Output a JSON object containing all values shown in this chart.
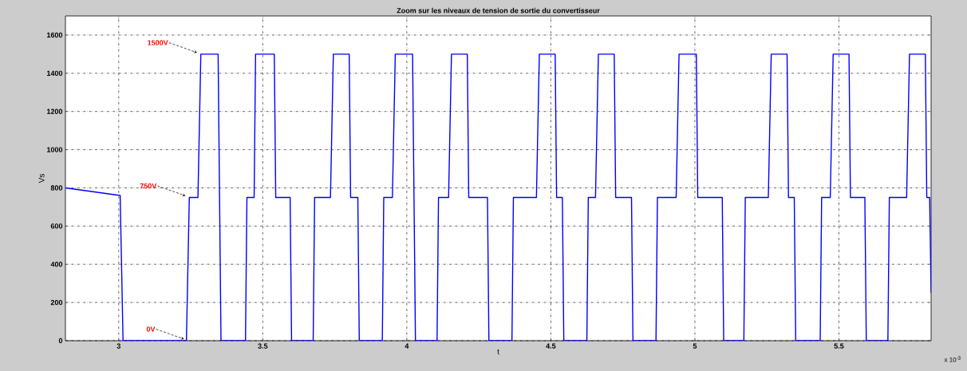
{
  "chart_data": {
    "type": "line",
    "title": "Zoom sur les niveaux de tension de sortie du convertisseur",
    "xlabel": "t",
    "ylabel": "Vs",
    "annotations": [
      {
        "text": "1500V",
        "x": 3.28,
        "y": 1500
      },
      {
        "text": "750V",
        "x": 3.24,
        "y": 750
      },
      {
        "text": "0V",
        "x": 3.235,
        "y": 0
      },
      "x 10$^{-3}$"
    ],
    "x": [
      2.815,
      3.005,
      3.015,
      3.235,
      3.245,
      3.275,
      3.285,
      3.345,
      3.35,
      3.355,
      3.44,
      3.445,
      3.47,
      3.475,
      3.54,
      3.545,
      3.595,
      3.6,
      3.675,
      3.68,
      3.735,
      3.745,
      3.8,
      3.805,
      3.83,
      3.835,
      3.915,
      3.92,
      3.95,
      3.96,
      4.02,
      4.025,
      4.03,
      4.105,
      4.11,
      4.145,
      4.155,
      4.21,
      4.215,
      4.28,
      4.285,
      4.365,
      4.37,
      4.45,
      4.46,
      4.515,
      4.52,
      4.54,
      4.545,
      4.625,
      4.63,
      4.655,
      4.665,
      4.72,
      4.725,
      4.78,
      4.785,
      4.865,
      4.87,
      4.935,
      4.945,
      5.005,
      5.01,
      5.095,
      5.1,
      5.17,
      5.175,
      5.255,
      5.265,
      5.32,
      5.325,
      5.345,
      5.35,
      5.435,
      5.44,
      5.47,
      5.48,
      5.535,
      5.54,
      5.59,
      5.595,
      5.67,
      5.675,
      5.735,
      5.745,
      5.8,
      5.805,
      5.815,
      5.82
    ],
    "series": [
      {
        "color": "#0000ff",
        "values": [
          800,
          760,
          0,
          0,
          750,
          750,
          1500,
          1500,
          750,
          0,
          0,
          750,
          750,
          1500,
          1500,
          750,
          750,
          0,
          0,
          750,
          750,
          1500,
          1500,
          750,
          750,
          0,
          0,
          750,
          750,
          1500,
          1500,
          750,
          0,
          0,
          750,
          750,
          1500,
          1500,
          750,
          750,
          0,
          0,
          750,
          750,
          1500,
          1500,
          750,
          750,
          0,
          0,
          750,
          750,
          1500,
          1500,
          750,
          750,
          0,
          0,
          750,
          750,
          1500,
          1500,
          750,
          750,
          0,
          0,
          750,
          750,
          1500,
          1500,
          750,
          750,
          0,
          0,
          750,
          750,
          1500,
          1500,
          750,
          750,
          0,
          0,
          750,
          750,
          1500,
          1500,
          750,
          750,
          250
        ]
      }
    ],
    "xlim": [
      2.815,
      5.82
    ],
    "ylim": [
      0,
      1700
    ],
    "xticks": [
      3,
      3.5,
      4,
      4.5,
      5,
      5.5
    ],
    "yticks": [
      0,
      200,
      400,
      600,
      800,
      1000,
      1200,
      1400,
      1600
    ],
    "grid": true,
    "line_style": "solid"
  }
}
